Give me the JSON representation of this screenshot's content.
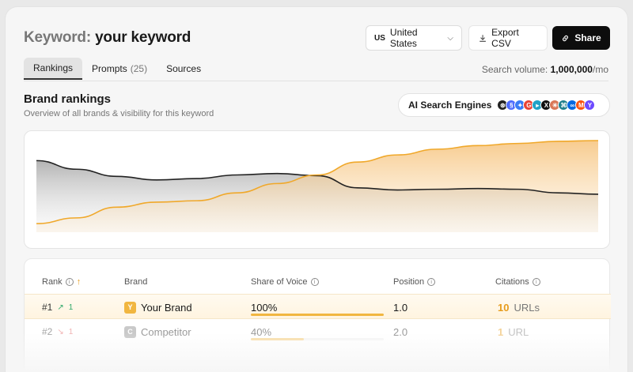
{
  "header": {
    "title_prefix": "Keyword:",
    "title_keyword": "your keyword",
    "country_code": "US",
    "country_label": "United States",
    "export_label": "Export CSV",
    "share_label": "Share"
  },
  "tabs": [
    {
      "label": "Rankings",
      "count": "",
      "active": true
    },
    {
      "label": "Prompts",
      "count": "(25)",
      "active": false
    },
    {
      "label": "Sources",
      "count": "",
      "active": false
    }
  ],
  "search_volume": {
    "label": "Search volume:",
    "value": "1,000,000",
    "unit": "/mo"
  },
  "section": {
    "title": "Brand rankings",
    "subtitle": "Overview of all brands & visibility for this keyword",
    "engines_label": "AI Search Engines"
  },
  "engine_icons": [
    {
      "name": "openai-icon",
      "color": "#222222",
      "glyph": "⊛"
    },
    {
      "name": "deepseek-icon",
      "color": "#4d6bfe",
      "glyph": "§"
    },
    {
      "name": "gemini-icon",
      "color": "#3a7bf5",
      "glyph": "✦"
    },
    {
      "name": "google-icon",
      "color": "#ea4335",
      "glyph": "G"
    },
    {
      "name": "copilot-icon",
      "color": "#1fa2c7",
      "glyph": "▸"
    },
    {
      "name": "grok-icon",
      "color": "#111111",
      "glyph": "X"
    },
    {
      "name": "claude-icon",
      "color": "#d97757",
      "glyph": "✳"
    },
    {
      "name": "perplexity-icon",
      "color": "#20808d",
      "glyph": "⌘"
    },
    {
      "name": "meta-icon",
      "color": "#0668e1",
      "glyph": "∞"
    },
    {
      "name": "mistral-icon",
      "color": "#fa520f",
      "glyph": "M"
    },
    {
      "name": "llama-icon",
      "color": "#6d4aff",
      "glyph": "Y"
    }
  ],
  "chart_data": {
    "type": "area",
    "grid": false,
    "series": [
      {
        "color": "#222222",
        "values": [
          100,
          88,
          78,
          73,
          75,
          80,
          82,
          79,
          62,
          59,
          60,
          61,
          60,
          55,
          53
        ]
      },
      {
        "color": "#f0a82a",
        "values": [
          12,
          20,
          35,
          42,
          44,
          55,
          68,
          80,
          98,
          108,
          116,
          121,
          124,
          127,
          128
        ]
      }
    ]
  },
  "table": {
    "headers": {
      "rank": "Rank",
      "brand": "Brand",
      "sov": "Share of Voice",
      "position": "Position",
      "citations": "Citations"
    },
    "rows": [
      {
        "rank": "#1",
        "delta": "1",
        "delta_dir": "up",
        "badge": "Y",
        "badge_color": "#f1b640",
        "brand": "Your Brand",
        "sov": "100%",
        "sov_value": 1.0,
        "position": "1.0",
        "citations": "10",
        "citations_unit": "URLs"
      },
      {
        "rank": "#2",
        "delta": "1",
        "delta_dir": "down",
        "badge": "C",
        "badge_color": "#8a8a8a",
        "brand": "Competitor",
        "sov": "40%",
        "sov_value": 0.4,
        "position": "2.0",
        "citations": "1",
        "citations_unit": "URL"
      }
    ]
  }
}
